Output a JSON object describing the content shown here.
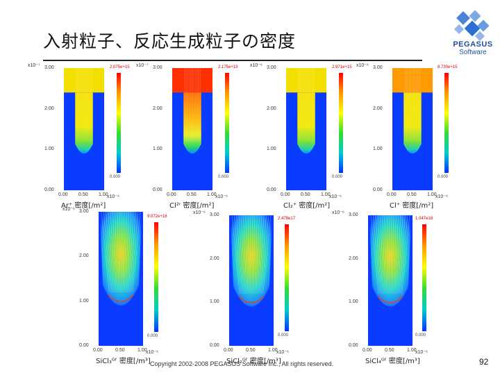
{
  "title": "入射粒子、反応生成粒子の密度",
  "logo": {
    "name": "PEGASUS",
    "sub": "Software"
  },
  "footer": {
    "copyright": "Copyright 2002-2008 PEGASUS Software Inc., All rights reserved.",
    "page": "92"
  },
  "colors": {
    "blue": "#0a3cff",
    "top_red": "#ff3000",
    "top_yellow": "#f4e000",
    "top_orange": "#ff9a00"
  },
  "panels": [
    {
      "id": "ar",
      "exp": "x10⁻⁷",
      "yticks": [
        "3.00",
        "2.00",
        "1.00",
        "0.00"
      ],
      "xticks": [
        "0.00",
        "0.50",
        "1.00"
      ],
      "xexp": "x10⁻⁶",
      "cbmax": "2.075e+15",
      "cbmin": "0.000",
      "caption": "Ar⁺ 密度[/m²]",
      "fill": "yellow"
    },
    {
      "id": "cl2plus",
      "exp": "x10⁻⁷",
      "yticks": [
        "3.00",
        "2.00",
        "1.00",
        "0.00"
      ],
      "xticks": [
        "0.00",
        "0.50",
        "1.00"
      ],
      "xexp": "x10⁻⁶",
      "cbmax": "2.175e+19",
      "cbmin": "0.000",
      "caption": "Cl²ʳ 密度[/m²]",
      "fill": "red"
    },
    {
      "id": "cl2",
      "exp": "x10⁻⁶",
      "yticks": [
        "3.00",
        "2.00",
        "1.00",
        "0.00"
      ],
      "xticks": [
        "0.00",
        "0.50",
        "1.00"
      ],
      "xexp": "x10⁻⁶",
      "cbmax": "2.971e+15",
      "cbmin": "0.000",
      "caption": "Cl₂⁺ 密度[/m²]",
      "fill": "yellow"
    },
    {
      "id": "clplus",
      "exp": "x10⁻⁶",
      "yticks": [
        "3.00",
        "2.00",
        "1.00",
        "0.00"
      ],
      "xticks": [
        "0.00",
        "0.50",
        "1.00"
      ],
      "xexp": "x10⁻⁶",
      "cbmax": "8.730e+15",
      "cbmin": "0.000",
      "caption": "Cl⁺ 密度[/m²]",
      "fill": "orange"
    },
    {
      "id": "sicl3",
      "exp": "x10⁻⁶",
      "yticks": [
        "3.00",
        "2.00",
        "1.00",
        "0.00"
      ],
      "xticks": [
        "0.00",
        "0.50",
        "1.00"
      ],
      "xexp": "x10⁻⁶",
      "cbmax": "9.072e+16",
      "cbmin": "0.000",
      "caption": "SiCl₃ᴳᶠ 密度[/m³]",
      "fill": "plume"
    },
    {
      "id": "sicl2",
      "exp": "x10⁻⁶",
      "yticks": [
        "3.00",
        "2.00",
        "1.00",
        "0.00"
      ],
      "xticks": [
        "0.00",
        "0.50",
        "1.00"
      ],
      "xexp": "x10⁻⁶",
      "cbmax": "2.478e17",
      "cbmin": "0.000",
      "caption": "SiCl₂ᴳᶠ 密度[/m³]",
      "fill": "plume"
    },
    {
      "id": "sicl4",
      "exp": "x10⁻⁶",
      "yticks": [
        "3.00",
        "2.00",
        "1.00",
        "0.00"
      ],
      "xticks": [
        "0.00",
        "0.50",
        "1.00"
      ],
      "xexp": "x10⁻⁶",
      "cbmax": "1.047e18",
      "cbmin": "0.000",
      "caption": "SiCl₄ᴳᶠ 密度[/m³]",
      "fill": "plume"
    }
  ]
}
